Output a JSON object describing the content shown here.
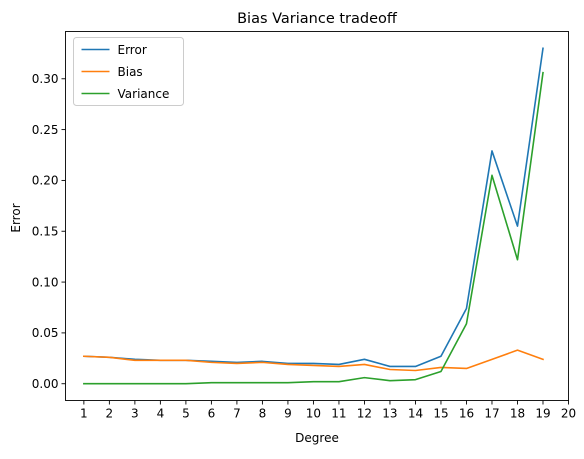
{
  "chart_data": {
    "type": "line",
    "title": "Bias Variance tradeoff",
    "xlabel": "Degree",
    "ylabel": "Error",
    "x": [
      1,
      2,
      3,
      4,
      5,
      6,
      7,
      8,
      9,
      10,
      11,
      12,
      13,
      14,
      15,
      16,
      17,
      18,
      19
    ],
    "x_ticks": [
      1,
      2,
      3,
      4,
      5,
      6,
      7,
      8,
      9,
      10,
      11,
      12,
      13,
      14,
      15,
      16,
      17,
      18,
      19,
      20
    ],
    "y_ticks": [
      "0.00",
      "0.05",
      "0.10",
      "0.15",
      "0.20",
      "0.25",
      "0.30"
    ],
    "xlim": [
      0.28,
      20.0
    ],
    "ylim": [
      -0.0165,
      0.3465
    ],
    "grid": false,
    "legend_position": "top-left",
    "series": [
      {
        "name": "Error",
        "color": "#1f77b4",
        "values": [
          0.027,
          0.026,
          0.024,
          0.023,
          0.023,
          0.022,
          0.021,
          0.022,
          0.02,
          0.02,
          0.019,
          0.024,
          0.017,
          0.017,
          0.027,
          0.074,
          0.229,
          0.155,
          0.33
        ]
      },
      {
        "name": "Bias",
        "color": "#ff7f0e",
        "values": [
          0.027,
          0.026,
          0.023,
          0.023,
          0.023,
          0.021,
          0.02,
          0.021,
          0.019,
          0.018,
          0.017,
          0.019,
          0.014,
          0.013,
          0.016,
          0.015,
          0.024,
          0.033,
          0.024
        ]
      },
      {
        "name": "Variance",
        "color": "#2ca02c",
        "values": [
          0.0,
          0.0,
          0.0,
          0.0,
          0.0,
          0.001,
          0.001,
          0.001,
          0.001,
          0.002,
          0.002,
          0.006,
          0.003,
          0.004,
          0.012,
          0.059,
          0.205,
          0.122,
          0.306
        ]
      }
    ]
  }
}
